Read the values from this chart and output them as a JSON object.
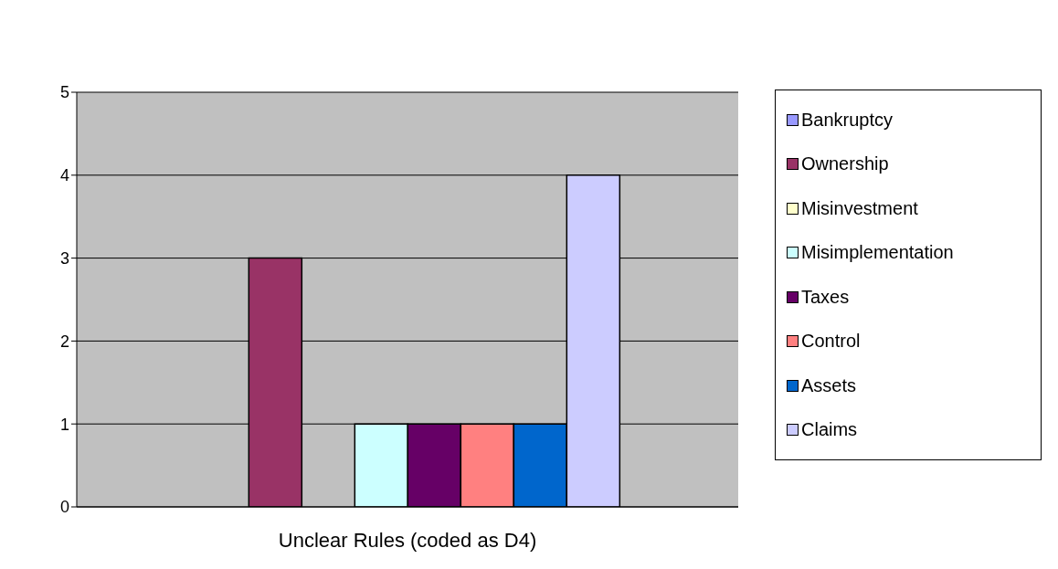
{
  "chart_data": {
    "type": "bar",
    "categories": [
      "Unclear Rules (coded as D4)"
    ],
    "series": [
      {
        "name": "Bankruptcy",
        "color": "#9999ff",
        "values": [
          0
        ]
      },
      {
        "name": "Ownership",
        "color": "#993366",
        "values": [
          3
        ]
      },
      {
        "name": "Misinvestment",
        "color": "#ffffcc",
        "values": [
          0
        ]
      },
      {
        "name": "Misimplementation",
        "color": "#ccffff",
        "values": [
          1
        ]
      },
      {
        "name": "Taxes",
        "color": "#660066",
        "values": [
          1
        ]
      },
      {
        "name": "Control",
        "color": "#ff8080",
        "values": [
          1
        ]
      },
      {
        "name": "Assets",
        "color": "#0066cc",
        "values": [
          1
        ]
      },
      {
        "name": "Claims",
        "color": "#ccccff",
        "values": [
          4
        ]
      }
    ],
    "ylim": [
      0,
      5
    ],
    "yticks": [
      0,
      1,
      2,
      3,
      4,
      5
    ],
    "grid": "y",
    "legend": "right"
  }
}
